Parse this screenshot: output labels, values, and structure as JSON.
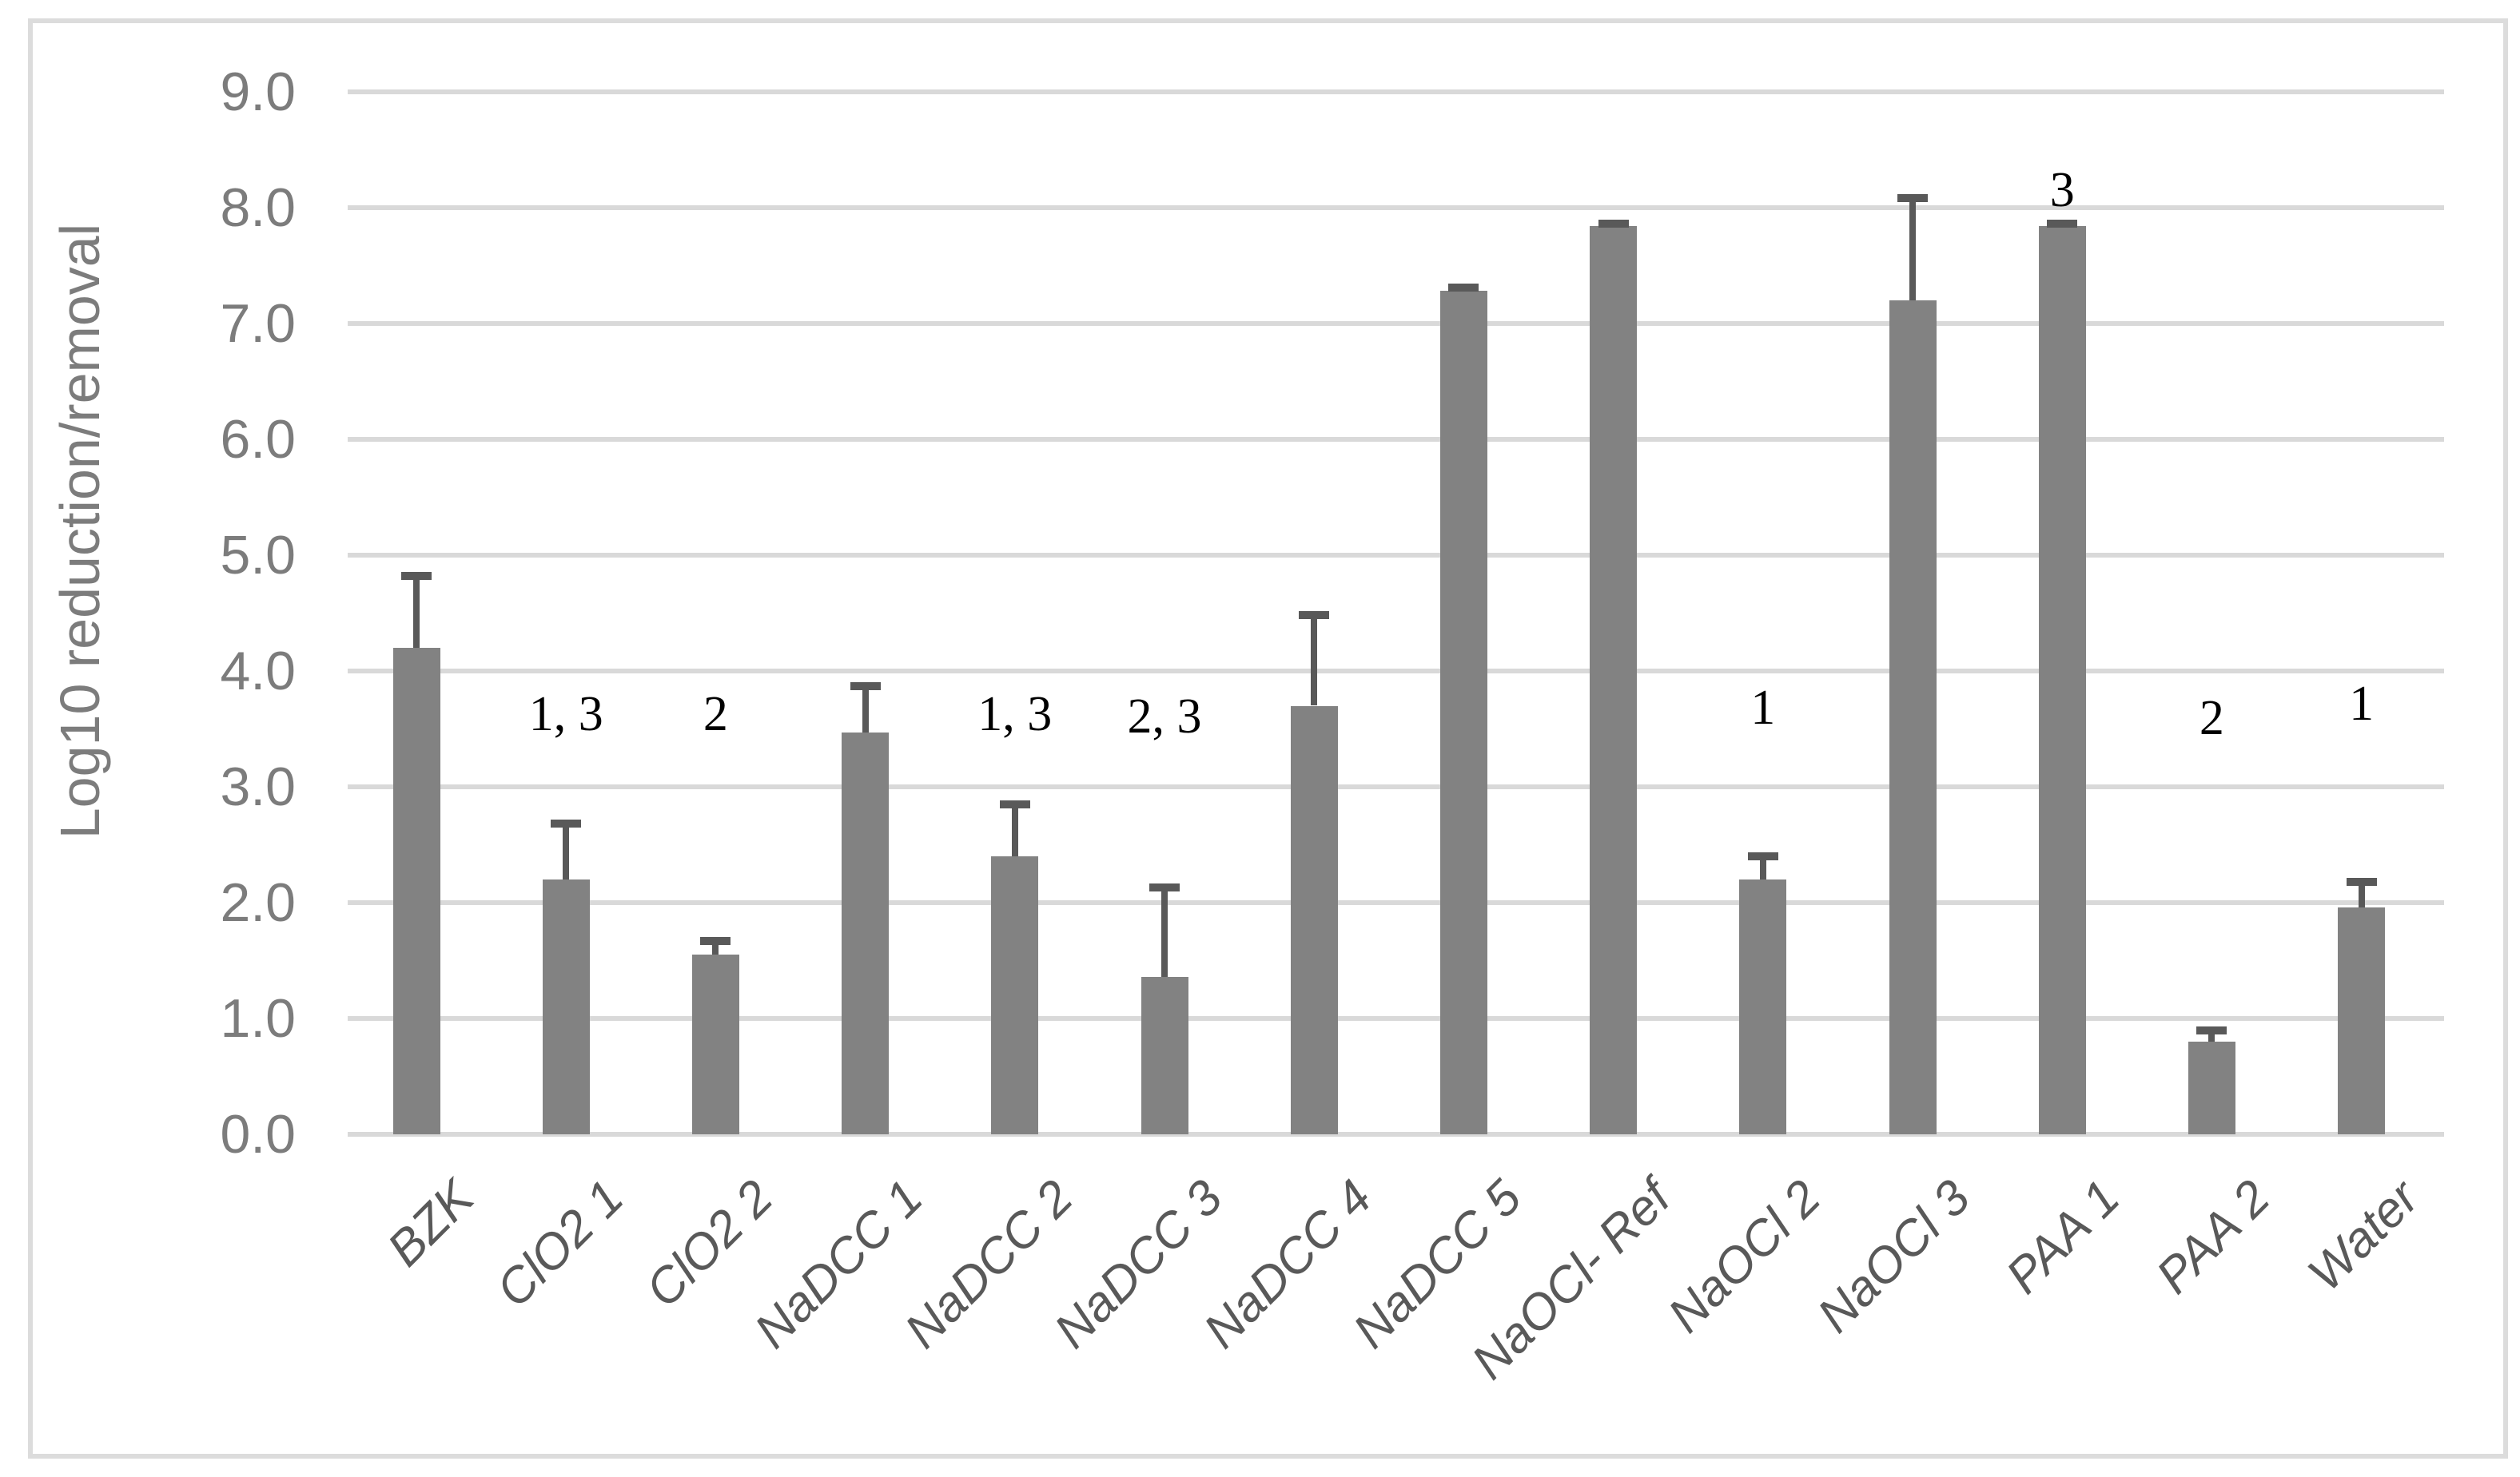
{
  "chart_data": {
    "type": "bar",
    "title": "",
    "xlabel": "",
    "ylabel": "Log10 reduction/removal",
    "ylim": [
      0,
      9
    ],
    "grid": true,
    "legend": "none",
    "yticks": [
      "0.0",
      "1.0",
      "2.0",
      "3.0",
      "4.0",
      "5.0",
      "6.0",
      "7.0",
      "8.0",
      "9.0"
    ],
    "categories": [
      "BZK",
      "ClO2 1",
      "ClO2 2",
      "NaDCC 1",
      "NaDCC 2",
      "NaDCC 3",
      "NaDCC 4",
      "NaDCC 5",
      "NaOCl- Ref",
      "NaOCl 2",
      "NaOCl 3",
      "PAA 1",
      "PAA 2",
      "Water"
    ],
    "values": [
      4.2,
      2.2,
      1.55,
      3.47,
      2.4,
      1.36,
      3.7,
      7.28,
      7.84,
      2.2,
      7.2,
      7.84,
      0.8,
      1.96
    ],
    "error_plus": [
      0.62,
      0.48,
      0.12,
      0.4,
      0.45,
      0.77,
      0.78,
      0.03,
      0.02,
      0.2,
      0.88,
      0.02,
      0.1,
      0.22
    ],
    "annotations": [
      null,
      "1, 3",
      "2",
      null,
      "1, 3",
      "2, 3",
      null,
      null,
      null,
      "1",
      null,
      "3",
      "2",
      "1"
    ],
    "annotation_y": [
      null,
      3.63,
      3.63,
      null,
      3.63,
      3.61,
      null,
      null,
      null,
      3.68,
      null,
      8.15,
      3.59,
      3.72
    ],
    "colors": {
      "bar": "#828282",
      "error_bar": "#595959",
      "gridline": "#d9d9d9",
      "tick_label": "#7c7c7c",
      "category_label": "#595959",
      "annotation": "#000000",
      "figure_border": "#dcdcdc",
      "background": "#ffffff"
    }
  }
}
